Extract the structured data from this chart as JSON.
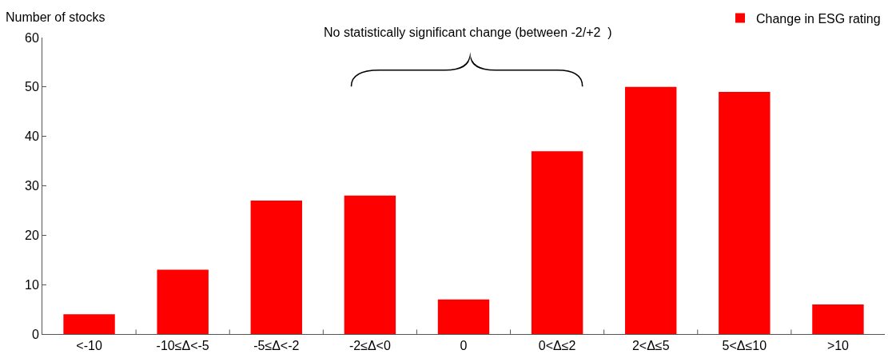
{
  "chart_data": {
    "type": "bar",
    "ylabel": "Number of stocks",
    "categories": [
      "<-10",
      "-10≤Δ<-5",
      "-5≤Δ<-2",
      "-2≤Δ<0",
      "0",
      "0<Δ≤2",
      "2<Δ≤5",
      "5<Δ≤10",
      ">10"
    ],
    "series": [
      {
        "name": "Change in ESG rating",
        "color": "#ff0000",
        "values": [
          4,
          13,
          27,
          28,
          7,
          37,
          50,
          49,
          6
        ]
      }
    ],
    "ylim": [
      0,
      60
    ],
    "yticks": [
      0,
      10,
      20,
      30,
      40,
      50,
      60
    ],
    "grid": false,
    "legend": "top right",
    "annotations": [
      "No statistically significant change (between -2/+2  )"
    ]
  }
}
